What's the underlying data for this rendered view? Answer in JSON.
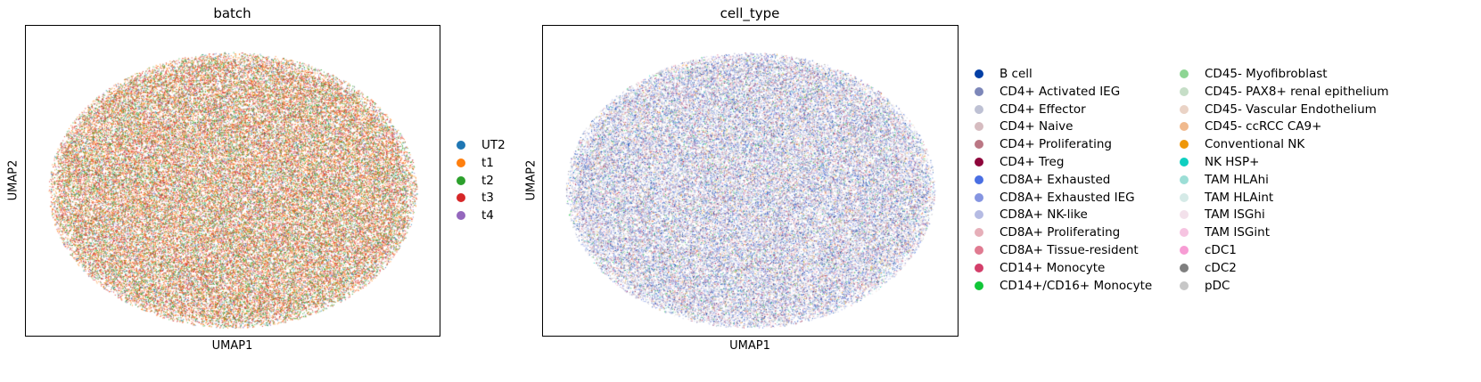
{
  "chart_data": [
    {
      "type": "scatter",
      "title": "batch",
      "xlabel": "UMAP1",
      "ylabel": "UMAP2",
      "legend_placement": "right",
      "grid": false,
      "series": [
        {
          "name": "UT2",
          "color": "#1f77b4"
        },
        {
          "name": "t1",
          "color": "#ff7f0e"
        },
        {
          "name": "t2",
          "color": "#2ca02c"
        },
        {
          "name": "t3",
          "color": "#d62728"
        },
        {
          "name": "t4",
          "color": "#9467bd"
        }
      ]
    },
    {
      "type": "scatter",
      "title": "cell_type",
      "xlabel": "UMAP1",
      "ylabel": "UMAP2",
      "legend_placement": "right",
      "grid": false,
      "series": [
        {
          "name": "B cell",
          "color": "#023fa5"
        },
        {
          "name": "CD4+ Activated IEG",
          "color": "#7d87b9"
        },
        {
          "name": "CD4+ Effector",
          "color": "#bec1d4"
        },
        {
          "name": "CD4+ Naive",
          "color": "#d6bcc0"
        },
        {
          "name": "CD4+ Proliferating",
          "color": "#bb7784"
        },
        {
          "name": "CD4+ Treg",
          "color": "#8e063b"
        },
        {
          "name": "CD8A+ Exhausted",
          "color": "#4a6fe3"
        },
        {
          "name": "CD8A+ Exhausted IEG",
          "color": "#8595e1"
        },
        {
          "name": "CD8A+ NK-like",
          "color": "#b5bbe3"
        },
        {
          "name": "CD8A+ Proliferating",
          "color": "#e6afb9"
        },
        {
          "name": "CD8A+ Tissue-resident",
          "color": "#e07b91"
        },
        {
          "name": "CD14+ Monocyte",
          "color": "#d33f6a"
        },
        {
          "name": "CD14+/CD16+ Monocyte",
          "color": "#11c638"
        },
        {
          "name": "CD45- Myofibroblast",
          "color": "#8dd593"
        },
        {
          "name": "CD45- PAX8+ renal epithelium",
          "color": "#c6dec7"
        },
        {
          "name": "CD45- Vascular Endothelium",
          "color": "#ead3c6"
        },
        {
          "name": "CD45- ccRCC CA9+",
          "color": "#f0b98d"
        },
        {
          "name": "Conventional NK",
          "color": "#ef9708"
        },
        {
          "name": "NK HSP+",
          "color": "#0fcfc0"
        },
        {
          "name": "TAM HLAhi",
          "color": "#9cded6"
        },
        {
          "name": "TAM HLAint",
          "color": "#d5eae7"
        },
        {
          "name": "TAM ISGhi",
          "color": "#f3e1eb"
        },
        {
          "name": "TAM ISGint",
          "color": "#f6c4e1"
        },
        {
          "name": "cDC1",
          "color": "#f79cd4"
        },
        {
          "name": "cDC2",
          "color": "#7f7f7f"
        },
        {
          "name": "pDC",
          "color": "#c7c7c7"
        }
      ]
    }
  ]
}
